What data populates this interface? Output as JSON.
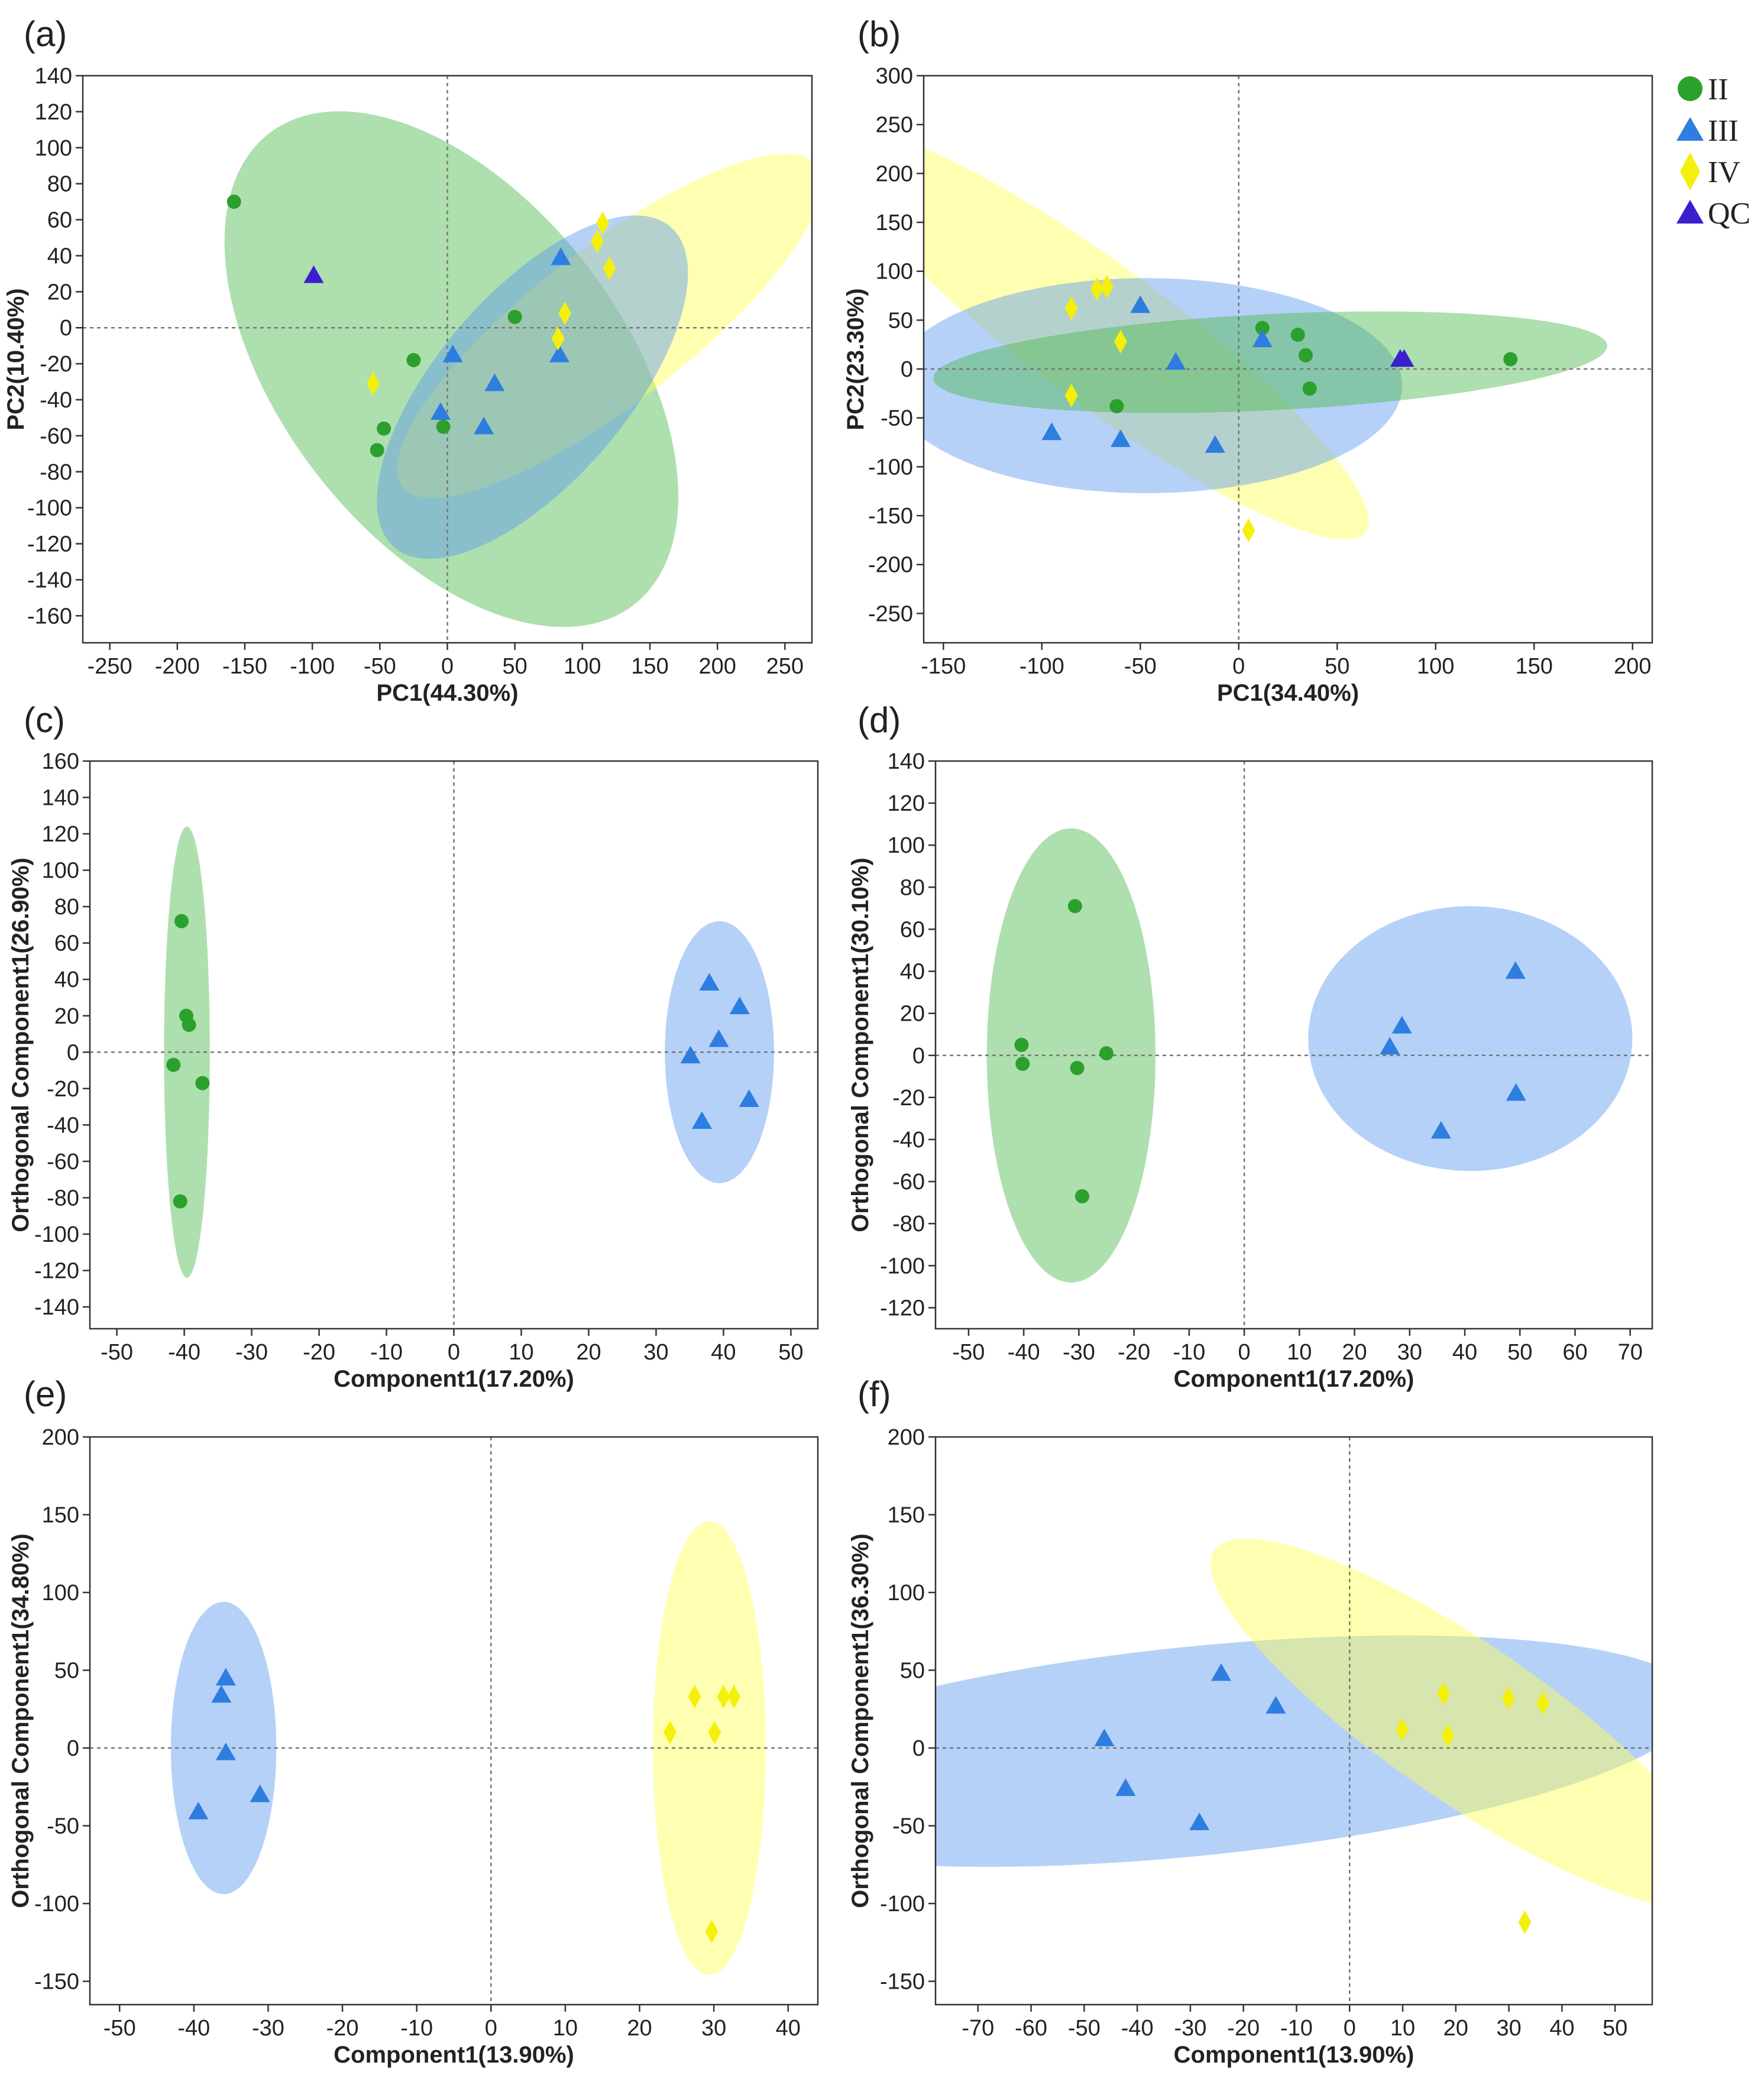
{
  "colors": {
    "II": "#2ca02c",
    "III": "#2e7de0",
    "IV": "#f5ef0c",
    "QC": "#3a1fcf",
    "ellipse_II": "#4cb84c",
    "ellipse_III": "#5a9af0",
    "ellipse_IV": "#ffff55"
  },
  "legend": [
    {
      "key": "II",
      "label": "II",
      "marker": "circle",
      "icon": "circle-icon"
    },
    {
      "key": "III",
      "label": "III",
      "marker": "triangle",
      "icon": "triangle-icon"
    },
    {
      "key": "IV",
      "label": "IV",
      "marker": "diamond",
      "icon": "diamond-icon"
    },
    {
      "key": "QC",
      "label": "QC",
      "marker": "triangle",
      "icon": "triangle-icon"
    }
  ],
  "chart_data": [
    {
      "id": "a",
      "panel_label": "(a)",
      "type": "scatter",
      "xlabel": "PC1(44.30%)",
      "ylabel": "PC2(10.40%)",
      "xlim": [
        -270,
        270
      ],
      "ylim": [
        -175,
        140
      ],
      "xticks": [
        -250,
        -200,
        -150,
        -100,
        -50,
        0,
        50,
        100,
        150,
        200,
        250
      ],
      "yticks": [
        140,
        120,
        100,
        80,
        60,
        40,
        20,
        0,
        -20,
        -40,
        -60,
        -80,
        -100,
        -120,
        -140,
        -160
      ],
      "ellipses": [
        {
          "group": "II",
          "cx": 3,
          "cy": -23,
          "rx": 192,
          "ry": 109,
          "angle": -36
        },
        {
          "group": "IV",
          "cx": 120,
          "cy": 1,
          "rx": 178,
          "ry": 47,
          "angle": 29
        },
        {
          "group": "III",
          "cx": 63,
          "cy": -33,
          "rx": 137,
          "ry": 60,
          "angle": 37
        }
      ],
      "series": [
        {
          "group": "II",
          "points": [
            [
              -158,
              70
            ],
            [
              -25,
              -18
            ],
            [
              -47,
              -56
            ],
            [
              -52,
              -68
            ],
            [
              -3,
              -55
            ],
            [
              50,
              6
            ]
          ]
        },
        {
          "group": "III",
          "points": [
            [
              84,
              39
            ],
            [
              4,
              -15
            ],
            [
              35,
              -31
            ],
            [
              83,
              -15
            ],
            [
              -5,
              -47
            ],
            [
              27,
              -55
            ]
          ]
        },
        {
          "group": "IV",
          "points": [
            [
              -55,
              -31
            ],
            [
              82,
              -6
            ],
            [
              87,
              8
            ],
            [
              111,
              48
            ],
            [
              115,
              58
            ],
            [
              120,
              33
            ]
          ]
        },
        {
          "group": "QC",
          "points": [
            [
              -99,
              29
            ]
          ]
        }
      ]
    },
    {
      "id": "b",
      "panel_label": "(b)",
      "type": "scatter",
      "xlabel": "PC1(34.40%)",
      "ylabel": "PC2(23.30%)",
      "xlim": [
        -160,
        210
      ],
      "ylim": [
        -280,
        300
      ],
      "xticks": [
        -150,
        -100,
        -50,
        0,
        50,
        100,
        150,
        200
      ],
      "yticks": [
        300,
        250,
        200,
        150,
        100,
        50,
        0,
        -50,
        -100,
        -150,
        -200,
        -250
      ],
      "ellipses": [
        {
          "group": "IV",
          "cx": -70,
          "cy": 35,
          "rx": 245,
          "ry": 48,
          "angle": -58
        },
        {
          "group": "III",
          "cx": -47,
          "cy": -17,
          "rx": 130,
          "ry": 110,
          "angle": 0
        },
        {
          "group": "II",
          "cx": 16,
          "cy": 7,
          "rx": 172,
          "ry": 49,
          "angle": 6
        }
      ],
      "series": [
        {
          "group": "II",
          "points": [
            [
              12,
              42
            ],
            [
              30,
              35
            ],
            [
              34,
              14
            ],
            [
              36,
              -20
            ],
            [
              -62,
              -38
            ],
            [
              138,
              10
            ]
          ]
        },
        {
          "group": "III",
          "points": [
            [
              -50,
              65
            ],
            [
              -32,
              7
            ],
            [
              12,
              30
            ],
            [
              -95,
              -65
            ],
            [
              -60,
              -72
            ],
            [
              -12,
              -78
            ]
          ]
        },
        {
          "group": "IV",
          "points": [
            [
              -85,
              62
            ],
            [
              -72,
              82
            ],
            [
              -67,
              84
            ],
            [
              -60,
              28
            ],
            [
              -85,
              -27
            ],
            [
              5,
              -165
            ]
          ]
        },
        {
          "group": "QC",
          "points": [
            [
              82,
              10
            ],
            [
              84,
              10
            ]
          ]
        }
      ]
    },
    {
      "id": "c",
      "panel_label": "(c)",
      "type": "scatter",
      "xlabel": "Component1(17.20%)",
      "ylabel": "Orthogonal Component1(26.90%)",
      "xlim": [
        -54,
        54
      ],
      "ylim": [
        -152,
        160
      ],
      "xticks": [
        -50,
        -40,
        -30,
        -20,
        -10,
        0,
        10,
        20,
        30,
        40,
        50
      ],
      "yticks": [
        160,
        140,
        120,
        100,
        80,
        60,
        40,
        20,
        0,
        -20,
        -40,
        -60,
        -80,
        -100,
        -120,
        -140
      ],
      "ellipses": [
        {
          "group": "II",
          "cx": -39.6,
          "cy": 0,
          "rx": 3.4,
          "ry": 124,
          "angle": 0
        },
        {
          "group": "III",
          "cx": 39.4,
          "cy": 0,
          "rx": 8.1,
          "ry": 72,
          "angle": 0
        }
      ],
      "series": [
        {
          "group": "II",
          "points": [
            [
              -40.4,
              72
            ],
            [
              -39.7,
              20
            ],
            [
              -39.3,
              15
            ],
            [
              -41.6,
              -7
            ],
            [
              -37.3,
              -17
            ],
            [
              -40.6,
              -82
            ]
          ]
        },
        {
          "group": "III",
          "points": [
            [
              37.9,
              38
            ],
            [
              42.4,
              25
            ],
            [
              39.3,
              7
            ],
            [
              35.1,
              -2
            ],
            [
              36.8,
              -38
            ],
            [
              43.8,
              -26
            ]
          ]
        }
      ]
    },
    {
      "id": "d",
      "panel_label": "(d)",
      "type": "scatter",
      "xlabel": "Component1(17.20%)",
      "ylabel": "Orthogonal Component1(30.10%)",
      "xlim": [
        -56,
        74
      ],
      "ylim": [
        -130,
        140
      ],
      "xticks": [
        -50,
        -40,
        -30,
        -20,
        -10,
        0,
        10,
        20,
        30,
        40,
        50,
        60,
        70
      ],
      "yticks": [
        140,
        120,
        100,
        80,
        60,
        40,
        20,
        0,
        -20,
        -40,
        -60,
        -80,
        -100,
        -120
      ],
      "ellipses": [
        {
          "group": "II",
          "cx": -31.4,
          "cy": 0,
          "rx": 15.3,
          "ry": 108,
          "angle": 0
        },
        {
          "group": "III",
          "cx": 41,
          "cy": 8,
          "rx": 29.4,
          "ry": 63,
          "angle": 0
        }
      ],
      "series": [
        {
          "group": "II",
          "points": [
            [
              -30.7,
              71
            ],
            [
              -40.4,
              5
            ],
            [
              -40.2,
              -4
            ],
            [
              -30.3,
              -6
            ],
            [
              -25,
              1
            ],
            [
              -29.4,
              -67
            ]
          ]
        },
        {
          "group": "III",
          "points": [
            [
              49.2,
              40
            ],
            [
              28.6,
              14
            ],
            [
              26.4,
              4
            ],
            [
              35.7,
              -36
            ],
            [
              49.3,
              -18
            ]
          ]
        }
      ]
    },
    {
      "id": "e",
      "panel_label": "(e)",
      "type": "scatter",
      "xlabel": "Component1(13.90%)",
      "ylabel": "Orthogonal Component1(34.80%)",
      "xlim": [
        -54,
        44
      ],
      "ylim": [
        -165,
        200
      ],
      "xticks": [
        -50,
        -40,
        -30,
        -20,
        -10,
        0,
        10,
        20,
        30,
        40
      ],
      "yticks": [
        200,
        150,
        100,
        50,
        0,
        -50,
        -100,
        -150
      ],
      "ellipses": [
        {
          "group": "III",
          "cx": -36,
          "cy": 0,
          "rx": 7.1,
          "ry": 94,
          "angle": 0
        },
        {
          "group": "IV",
          "cx": 29.4,
          "cy": 0,
          "rx": 7.6,
          "ry": 146,
          "angle": 0
        }
      ],
      "series": [
        {
          "group": "III",
          "points": [
            [
              -35.7,
              45
            ],
            [
              -36.3,
              34
            ],
            [
              -35.7,
              -3
            ],
            [
              -31.1,
              -30
            ],
            [
              -39.4,
              -41
            ]
          ]
        },
        {
          "group": "IV",
          "points": [
            [
              24.1,
              10
            ],
            [
              27.4,
              33
            ],
            [
              30.1,
              10
            ],
            [
              31.3,
              33
            ],
            [
              32.7,
              33
            ],
            [
              29.7,
              -118
            ]
          ]
        }
      ]
    },
    {
      "id": "f",
      "panel_label": "(f)",
      "type": "scatter",
      "xlabel": "Component1(13.90%)",
      "ylabel": "Orthogonal Component1(36.30%)",
      "xlim": [
        -78,
        57
      ],
      "ylim": [
        -165,
        200
      ],
      "xticks": [
        -70,
        -60,
        -50,
        -40,
        -30,
        -20,
        -10,
        0,
        10,
        20,
        30,
        40,
        50
      ],
      "yticks": [
        200,
        150,
        100,
        50,
        0,
        -50,
        -100,
        -150
      ],
      "ellipses": [
        {
          "group": "III",
          "cx": -29,
          "cy": -2,
          "rx": 62,
          "ry": 103,
          "angle": -60
        },
        {
          "group": "IV",
          "cx": 22,
          "cy": 16,
          "rx": 23,
          "ry": 126,
          "angle": 20
        }
      ],
      "series": [
        {
          "group": "III",
          "points": [
            [
              -24.2,
              48
            ],
            [
              -13.9,
              27
            ],
            [
              -46.2,
              6
            ],
            [
              -42.2,
              -26
            ],
            [
              -28.3,
              -48
            ]
          ]
        },
        {
          "group": "IV",
          "points": [
            [
              9.9,
              12
            ],
            [
              17.7,
              35
            ],
            [
              18.5,
              8
            ],
            [
              29.9,
              32
            ],
            [
              36.4,
              29
            ],
            [
              33,
              -112
            ]
          ]
        }
      ]
    }
  ]
}
